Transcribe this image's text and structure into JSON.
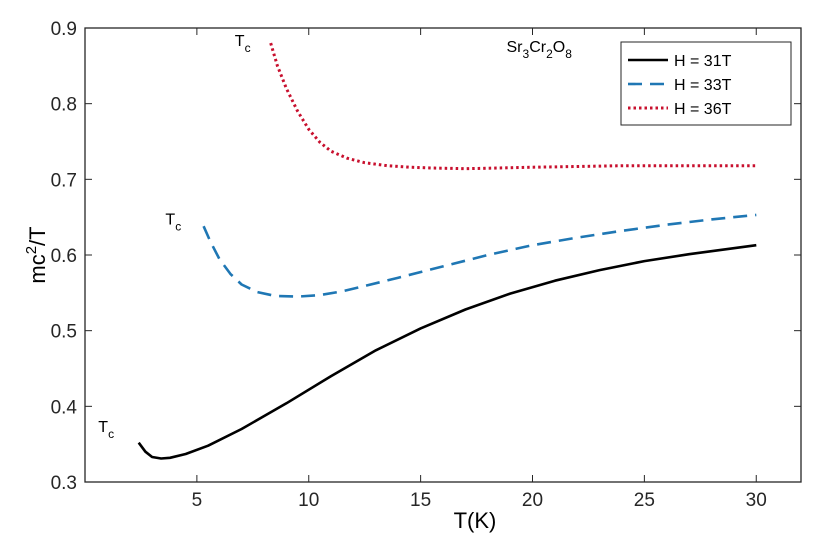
{
  "chart_data": {
    "type": "line",
    "title": "",
    "xlabel": "T(K)",
    "ylabel_base": "mc",
    "ylabel_sup": "2",
    "ylabel_tail": "/T",
    "xlim": [
      0,
      32
    ],
    "ylim": [
      0.3,
      0.9
    ],
    "xticks": [
      5,
      10,
      15,
      20,
      25,
      30
    ],
    "yticks": [
      0.3,
      0.4,
      0.5,
      0.6,
      0.7,
      0.8,
      0.9
    ],
    "xtick_labels": [
      "5",
      "10",
      "15",
      "20",
      "25",
      "30"
    ],
    "ytick_labels": [
      "0.3",
      "0.4",
      "0.5",
      "0.6",
      "0.7",
      "0.8",
      "0.9"
    ],
    "grid": false,
    "legend_position": "top-right",
    "compound": {
      "sr": "Sr",
      "sr_sub": "3",
      "cr": "Cr",
      "cr_sub": "2",
      "o": "O",
      "o_sub": "8",
      "x": 20.3,
      "y": 0.868
    },
    "tc_labels": [
      {
        "base": "T",
        "sub": "c",
        "x": 7.4,
        "y": 0.876
      },
      {
        "base": "T",
        "sub": "c",
        "x": 4.3,
        "y": 0.64
      },
      {
        "base": "T",
        "sub": "c",
        "x": 1.3,
        "y": 0.366
      }
    ],
    "series": [
      {
        "name": "H = 31T",
        "color": "#000000",
        "style": "solid",
        "x": [
          2.4,
          2.7,
          3.0,
          3.4,
          3.8,
          4.5,
          5.5,
          7,
          9,
          11,
          13,
          15,
          17,
          19,
          21,
          23,
          25,
          27,
          29,
          30
        ],
        "y": [
          0.352,
          0.34,
          0.333,
          0.331,
          0.332,
          0.337,
          0.348,
          0.37,
          0.404,
          0.44,
          0.474,
          0.503,
          0.528,
          0.549,
          0.566,
          0.58,
          0.592,
          0.601,
          0.609,
          0.613
        ]
      },
      {
        "name": "H = 33T",
        "color": "#1f77b4",
        "style": "dashed",
        "x": [
          5.3,
          5.6,
          6.0,
          6.5,
          7.0,
          7.7,
          8.5,
          9.5,
          10.5,
          11.5,
          12.5,
          14,
          16,
          18,
          20,
          22,
          24,
          26,
          28,
          30
        ],
        "y": [
          0.638,
          0.618,
          0.595,
          0.575,
          0.561,
          0.551,
          0.546,
          0.545,
          0.547,
          0.552,
          0.559,
          0.57,
          0.585,
          0.6,
          0.613,
          0.623,
          0.632,
          0.64,
          0.647,
          0.653
        ]
      },
      {
        "name": "H = 36T",
        "color": "#c8102e",
        "style": "dotted",
        "x": [
          8.3,
          8.6,
          9.0,
          9.5,
          10.0,
          10.5,
          11.0,
          11.7,
          12.5,
          13.5,
          14.5,
          15.5,
          17.0,
          18.5,
          20.0,
          22.0,
          24.0,
          26.0,
          28.0,
          30.0
        ],
        "y": [
          0.88,
          0.85,
          0.82,
          0.79,
          0.766,
          0.749,
          0.737,
          0.728,
          0.722,
          0.718,
          0.716,
          0.715,
          0.714,
          0.715,
          0.716,
          0.717,
          0.718,
          0.718,
          0.718,
          0.718
        ]
      }
    ]
  }
}
